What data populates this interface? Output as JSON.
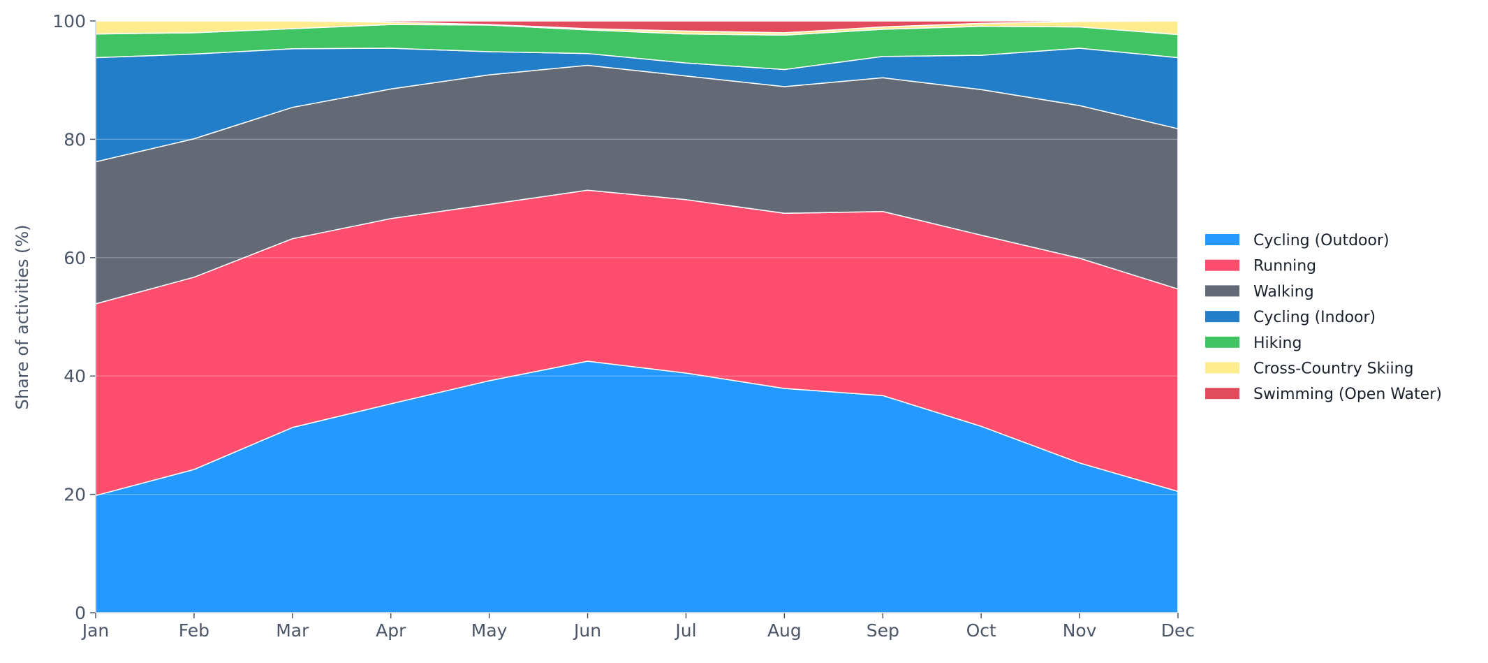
{
  "chart_data": {
    "type": "area",
    "stacked": true,
    "title": "",
    "xlabel": "",
    "ylabel": "Share of activities (%)",
    "categories": [
      "Jan",
      "Feb",
      "Mar",
      "Apr",
      "May",
      "Jun",
      "Jul",
      "Aug",
      "Sep",
      "Oct",
      "Nov",
      "Dec"
    ],
    "ylim": [
      0,
      100
    ],
    "yticks": [
      0,
      20,
      40,
      60,
      80,
      100
    ],
    "grid": true,
    "legend_position": "right",
    "series": [
      {
        "name": "Cycling (Outdoor)",
        "color": "#2499ff",
        "values": [
          19.8,
          24.2,
          31.3,
          35.3,
          39.2,
          42.5,
          40.5,
          37.9,
          36.7,
          31.5,
          25.3,
          20.5
        ]
      },
      {
        "name": "Running",
        "color": "#ff4d6d",
        "values": [
          32.4,
          32.5,
          31.9,
          31.3,
          29.8,
          28.9,
          29.3,
          29.6,
          31.1,
          32.3,
          34.6,
          34.2
        ]
      },
      {
        "name": "Walking",
        "color": "#636a76",
        "values": [
          24.0,
          23.4,
          22.2,
          21.9,
          21.9,
          21.1,
          20.9,
          21.4,
          22.6,
          24.6,
          25.8,
          27.1
        ]
      },
      {
        "name": "Cycling (Indoor)",
        "color": "#237ec9",
        "values": [
          17.6,
          14.3,
          9.9,
          6.9,
          3.9,
          2.0,
          2.2,
          2.9,
          3.6,
          5.8,
          9.7,
          12.0
        ]
      },
      {
        "name": "Hiking",
        "color": "#40c463",
        "values": [
          4.0,
          3.6,
          3.4,
          4.0,
          4.5,
          4.0,
          4.9,
          5.8,
          4.6,
          4.9,
          3.6,
          3.9
        ]
      },
      {
        "name": "Cross-Country Skiing",
        "color": "#ffec8f",
        "values": [
          2.2,
          2.0,
          1.3,
          0.4,
          0.1,
          0.2,
          0.5,
          0.4,
          0.4,
          0.5,
          0.9,
          2.3
        ]
      },
      {
        "name": "Swimming (Open Water)",
        "color": "#e24b5b",
        "values": [
          0,
          0,
          0,
          0.2,
          0.6,
          1.3,
          1.7,
          2.0,
          1.0,
          0.4,
          0.1,
          0
        ]
      }
    ]
  }
}
